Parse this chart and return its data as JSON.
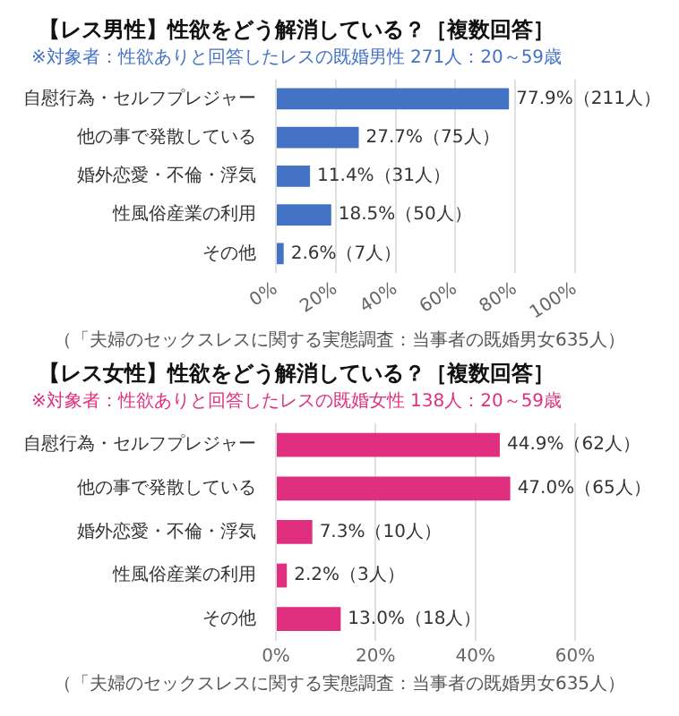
{
  "chart_data": [
    {
      "type": "bar",
      "orientation": "horizontal",
      "title": "【レス男性】性欲をどう解消している？［複数回答］",
      "subtitle": "※対象者：性欲ありと回答したレスの既婚男性 271人：20～59歳",
      "categories": [
        "自慰行為・セルフプレジャー",
        "他の事で発散している",
        "婚外恋愛・不倫・浮気",
        "性風俗産業の利用",
        "その他"
      ],
      "values": [
        77.9,
        27.7,
        11.4,
        18.5,
        2.6
      ],
      "color": "#4472c4",
      "value_labels": [
        "77.9%（211人）",
        "27.7%（75人）",
        "11.4%（31人）",
        "18.5%（50人）",
        "2.6%（7人）"
      ],
      "xlim": [
        0,
        100
      ],
      "xticks": [
        {
          "value": 0,
          "label": "0%"
        },
        {
          "value": 20,
          "label": "20%"
        },
        {
          "value": 40,
          "label": "40%"
        },
        {
          "value": 60,
          "label": "60%"
        },
        {
          "value": 80,
          "label": "80%"
        },
        {
          "value": 100,
          "label": "100%"
        }
      ],
      "grid": "x",
      "annotations": [
        "（「夫婦のセックスレスに関する実態調査：当事者の既婚男女635人）"
      ]
    },
    {
      "type": "bar",
      "orientation": "horizontal",
      "title": "【レス女性】性欲をどう解消している？［複数回答］",
      "subtitle": "※対象者：性欲ありと回答したレスの既婚女性 138人：20～59歳",
      "categories": [
        "自慰行為・セルフプレジャー",
        "他の事で発散している",
        "婚外恋愛・不倫・浮気",
        "性風俗産業の利用",
        "その他"
      ],
      "values": [
        44.9,
        47.0,
        7.3,
        2.2,
        13.0
      ],
      "color": "#df2f7e",
      "value_labels": [
        "44.9%（62人）",
        "47.0%（65人）",
        "7.3%（10人）",
        "2.2%（3人）",
        "13.0%（18人）"
      ],
      "xlim": [
        0,
        60
      ],
      "xticks": [
        {
          "value": 0,
          "label": "0%"
        },
        {
          "value": 20,
          "label": "20%"
        },
        {
          "value": 40,
          "label": "40%"
        },
        {
          "value": 60,
          "label": "60%"
        }
      ],
      "grid": "x",
      "annotations": [
        "（「夫婦のセックスレスに関する実態調査：当事者の既婚男女635人）"
      ]
    }
  ]
}
